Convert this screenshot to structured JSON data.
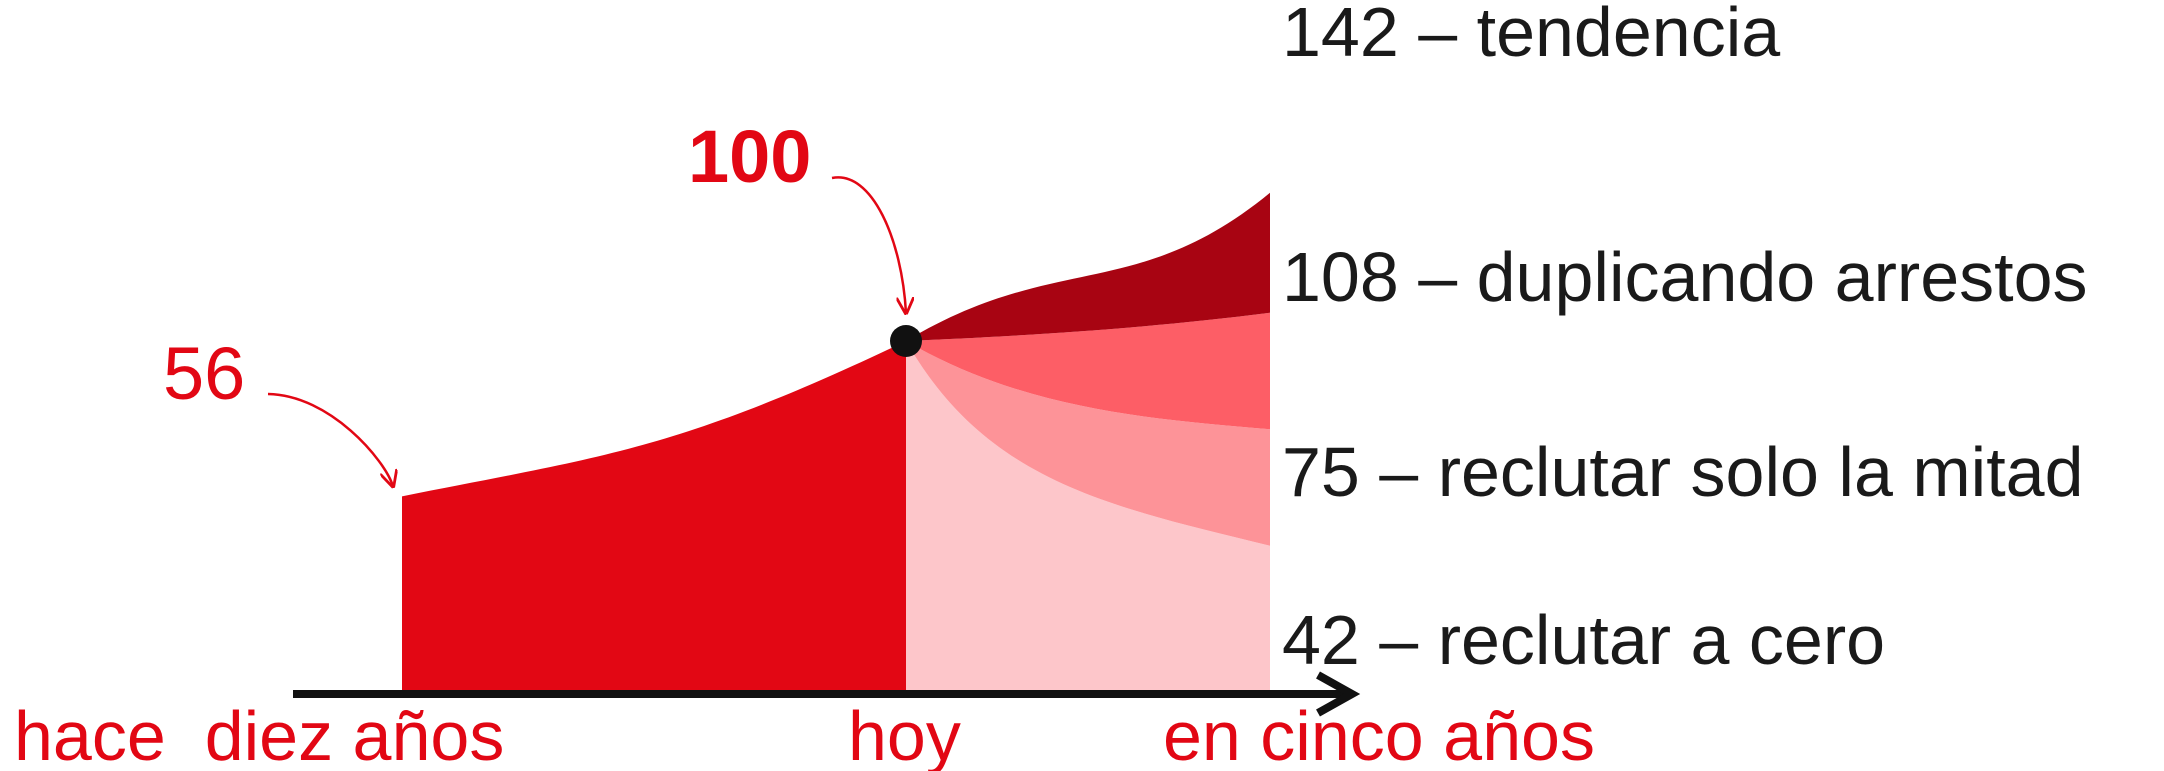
{
  "chart_data": {
    "type": "area",
    "title": "",
    "xlabel": "",
    "ylabel": "",
    "x_ticks": [
      "hace  diez años",
      "hoy",
      "en cinco años"
    ],
    "ylim": [
      0,
      150
    ],
    "grid": false,
    "history": {
      "start_value": 56,
      "start_label": "56",
      "end_value": 100,
      "end_label": "100"
    },
    "scenarios": [
      {
        "name": "tendencia",
        "end_value": 142,
        "label": "142 – tendencia",
        "color": "#a80412"
      },
      {
        "name": "duplicando arrestos",
        "end_value": 108,
        "label": "108 – duplicando arrestos",
        "color": "#fd5e66"
      },
      {
        "name": "reclutar solo la mitad",
        "end_value": 75,
        "label": "75 – reclutar solo la mitad",
        "color": "#fd9398"
      },
      {
        "name": "reclutar a cero",
        "end_value": 42,
        "label": "42 – reclutar a cero",
        "color": "#fdc6ca"
      }
    ],
    "history_color": "#e20714"
  }
}
